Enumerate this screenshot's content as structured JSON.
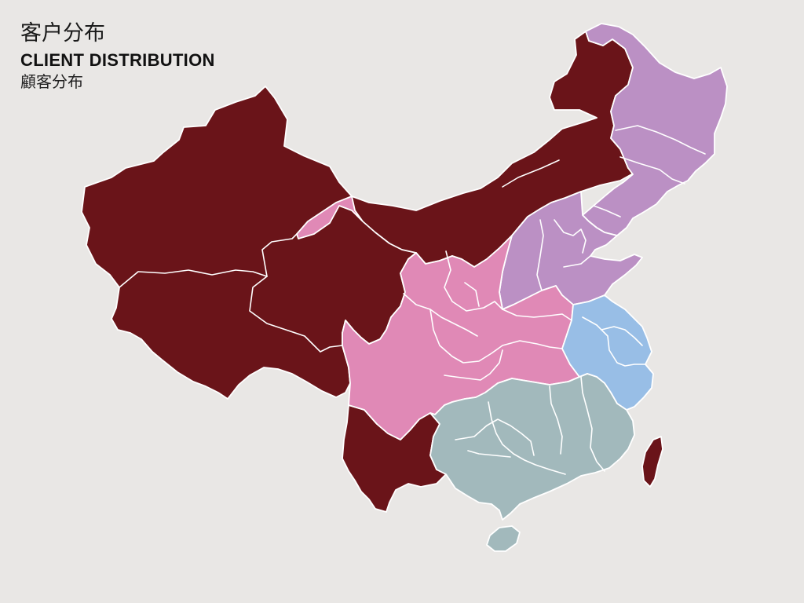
{
  "title": {
    "chinese": "客户分布",
    "english": "CLIENT DISTRIBUTION",
    "subtitle": "顧客分布"
  },
  "colors": {
    "background": "#e9e7e5",
    "region_dark_red": "#6a1419",
    "region_purple": "#bb90c4",
    "region_pink": "#e089b6",
    "region_blue": "#98bee6",
    "region_teal": "#a2b9bc",
    "border": "#ffffff"
  },
  "map": {
    "regions": [
      {
        "id": "west-north",
        "color_key": "region_dark_red"
      },
      {
        "id": "northeast",
        "color_key": "region_purple"
      },
      {
        "id": "north-central",
        "color_key": "region_purple"
      },
      {
        "id": "central",
        "color_key": "region_pink"
      },
      {
        "id": "east",
        "color_key": "region_blue"
      },
      {
        "id": "south",
        "color_key": "region_teal"
      },
      {
        "id": "southwest",
        "color_key": "region_dark_red"
      }
    ]
  }
}
